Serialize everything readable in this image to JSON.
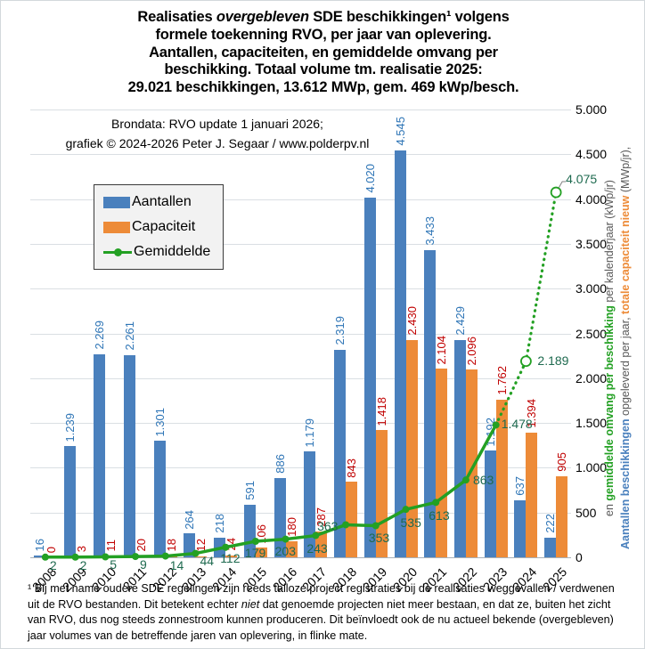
{
  "title": {
    "line1_pre": "Realisaties ",
    "line1_italic": "overgebleven",
    "line1_post": " SDE beschikkingen¹ volgens",
    "line2": "formele toekenning RVO, per jaar van oplevering.",
    "line3": "Aantallen, capaciteiten, en gemiddelde omvang per",
    "line4": "beschikking. Totaal volume tm. realisatie 2025:",
    "line5": "29.021 beschikkingen, 13.612 MWp, gem. 469 kWp/besch."
  },
  "subtitle": {
    "line1": "Brondata: RVO update 1 januari 2026;",
    "line2": "grafiek © 2024-2026 Peter J. Segaar / www.polderpv.nl"
  },
  "right_axis": {
    "tick_labels": [
      "0",
      "500",
      "1.000",
      "1.500",
      "2.000",
      "2.500",
      "3.000",
      "3.500",
      "4.000",
      "4.500",
      "5.000"
    ],
    "title_line1": [
      {
        "text": "Aantallen beschikkingen",
        "color": "#4a80bd",
        "bold": true
      },
      {
        "text": " opgeleverd per jaar, ",
        "color": "#595959",
        "bold": false
      },
      {
        "text": "totale capaciteit nieuw",
        "color": "#ed8b38",
        "bold": true
      },
      {
        "text": " (MWp/jr),",
        "color": "#595959",
        "bold": false
      }
    ],
    "title_line2": [
      {
        "text": "en ",
        "color": "#595959",
        "bold": false
      },
      {
        "text": "gemiddelde omvang per beschikking",
        "color": "#23a023",
        "bold": true
      },
      {
        "text": " per kalenderjaar (kWp/jr)",
        "color": "#595959",
        "bold": false
      }
    ]
  },
  "footnote": {
    "pre": "¹ Bij met name oudere SDE regelingen zijn reeds talloze project registraties bij de realisaties weggevallen / verdwenen uit de RVO bestanden. Dit betekent echter ",
    "italic": "niet",
    "post": " dat genoemde projecten niet meer bestaan, en dat ze, buiten het zicht van RVO, dus nog steeds zonnestroom kunnen produceren. Dit beïnvloedt ook de nu actueel bekende (overgebleven) jaar volumes van de betreffende jaren van oplevering, in flinke mate."
  },
  "chart_data": {
    "type": "bar",
    "title": "Realisaties overgebleven SDE beschikkingen¹ volgens formele toekenning RVO, per jaar van oplevering. Aantallen, capaciteiten, en gemiddelde omvang per beschikking. Totaal volume tm. realisatie 2025: 29.021 beschikkingen, 13.612 MWp, gem. 469 kWp/besch.",
    "subtitle": "Brondata: RVO update 1 januari 2026; grafiek © 2024-2026 Peter J. Segaar / www.polderpv.nl",
    "categories": [
      "2008",
      "2009",
      "2010",
      "2011",
      "2012",
      "2013",
      "2014",
      "2015",
      "2016",
      "2017",
      "2018",
      "2019",
      "2020",
      "2021",
      "2022",
      "2023",
      "2024",
      "2025"
    ],
    "series": [
      {
        "name": "Aantallen",
        "type": "bar",
        "color": "#4a80bd",
        "label_color": "#2e75b6",
        "values": [
          16,
          1239,
          2269,
          2261,
          1301,
          264,
          218,
          591,
          886,
          1179,
          2319,
          4020,
          4545,
          3433,
          2429,
          1192,
          637,
          222
        ]
      },
      {
        "name": "Capaciteit",
        "type": "bar",
        "color": "#ed8b38",
        "label_color": "#c00000",
        "values": [
          0,
          3,
          11,
          20,
          18,
          12,
          24,
          106,
          180,
          287,
          843,
          1418,
          2430,
          2104,
          2096,
          1762,
          1394,
          905
        ]
      },
      {
        "name": "Gemiddelde",
        "type": "line",
        "color": "#23a023",
        "label_color": "#1e6a4f",
        "values": [
          2,
          2,
          5,
          9,
          14,
          44,
          112,
          179,
          203,
          243,
          363,
          353,
          535,
          613,
          863,
          1478,
          2189,
          4075
        ],
        "solid_through_year": "2023",
        "projected_years": [
          "2024",
          "2025"
        ]
      }
    ],
    "ylim": [
      0,
      5000
    ],
    "y_tick_step": 500,
    "grid": true,
    "value_axis_side": "right",
    "legend_position": "upper-left",
    "xlabel": "",
    "ylabel": "Aantallen beschikkingen opgeleverd per jaar, totale capaciteit nieuw (MWp/jr), en gemiddelde omvang per beschikking per kalenderjaar (kWp/jr)"
  }
}
